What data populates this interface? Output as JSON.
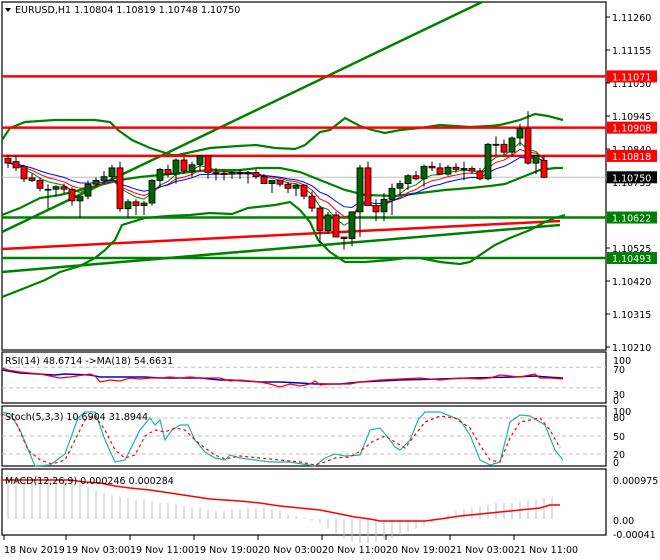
{
  "header": {
    "symbol": "EURUSD,H1",
    "ohlc": "1.10804 1.10819 1.10748 1.10750",
    "title": "EURUSD,H1  1.10804 1.10819 1.10748 1.10750"
  },
  "colors": {
    "bull": "#006400",
    "bear": "#ff0000",
    "resistance": "#ff0000",
    "support": "#008000",
    "band": "#008000",
    "ma_blue": "#0000ff",
    "ma_red": "#ff0000",
    "ma_green": "#008000",
    "rsi": "#ff0000",
    "rsi_ma": "#0000cc",
    "stoch_main": "#20b2aa",
    "stoch_signal": "#ff0000",
    "macd_hist": "#c0c0c0",
    "macd_signal": "#ff0000",
    "current_price_tag": "#000000"
  },
  "price_axis": {
    "labels": [
      "1.11260",
      "1.11155",
      "1.11050",
      "1.10945",
      "1.10840",
      "1.10735",
      "1.10525",
      "1.10420",
      "1.10315",
      "1.10210"
    ],
    "values": [
      1.1126,
      1.11155,
      1.1105,
      1.10945,
      1.1084,
      1.10735,
      1.10525,
      1.1042,
      1.10315,
      1.1021
    ]
  },
  "levels": [
    {
      "value": 1.11071,
      "label": "1.11071",
      "type": "resistance"
    },
    {
      "value": 1.10908,
      "label": "1.10908",
      "type": "resistance"
    },
    {
      "value": 1.10818,
      "label": "1.10818",
      "type": "resistance"
    },
    {
      "value": 1.10622,
      "label": "1.10622",
      "type": "support"
    },
    {
      "value": 1.10493,
      "label": "1.10493",
      "type": "support"
    }
  ],
  "current_price": {
    "value": 1.1075,
    "label": "1.10750"
  },
  "time_axis": {
    "labels": [
      "18 Nov 2019",
      "19 Nov 03:00",
      "19 Nov 11:00",
      "19 Nov 19:00",
      "20 Nov 03:00",
      "20 Nov 11:00",
      "20 Nov 19:00",
      "21 Nov 03:00",
      "21 Nov 11:00"
    ],
    "x": [
      4,
      66,
      130,
      194,
      258,
      322,
      386,
      450,
      514
    ]
  },
  "rsi": {
    "label": "RSI(14) 48.6714  ->MA(18) 54.6631",
    "axis": [
      "100",
      "70",
      "30",
      "0"
    ]
  },
  "stoch": {
    "label": "Stoch(5,3,3) 10.6904 31.8944",
    "axis": [
      "100",
      "80",
      "50",
      "20",
      "0"
    ]
  },
  "macd": {
    "label": "MACD(12,26,9) 0.000246 0.000284",
    "axis": [
      "0.000975",
      "0.00",
      "-0.00041"
    ]
  },
  "chart_data": {
    "type": "candlestick",
    "title": "EURUSD,H1",
    "candles": [
      [
        1.1081,
        1.10822,
        1.1078,
        1.10795
      ],
      [
        1.108,
        1.1082,
        1.1077,
        1.1078
      ],
      [
        1.10785,
        1.1079,
        1.10735,
        1.10745
      ],
      [
        1.10748,
        1.10762,
        1.10735,
        1.1074
      ],
      [
        1.1074,
        1.10748,
        1.10705,
        1.10715
      ],
      [
        1.10712,
        1.10728,
        1.1065,
        1.10712
      ],
      [
        1.10712,
        1.10726,
        1.1069,
        1.1072
      ],
      [
        1.1072,
        1.1073,
        1.107,
        1.10712
      ],
      [
        1.10712,
        1.10718,
        1.1066,
        1.10675
      ],
      [
        1.10675,
        1.1069,
        1.1062,
        1.1069
      ],
      [
        1.1069,
        1.1074,
        1.1068,
        1.10728
      ],
      [
        1.10728,
        1.1075,
        1.1072,
        1.1074
      ],
      [
        1.1074,
        1.1077,
        1.1073,
        1.10752
      ],
      [
        1.10752,
        1.1079,
        1.1074,
        1.1078
      ],
      [
        1.1078,
        1.108,
        1.1064,
        1.1065
      ],
      [
        1.1065,
        1.1068,
        1.1062,
        1.10672
      ],
      [
        1.10672,
        1.1068,
        1.1063,
        1.1066
      ],
      [
        1.1066,
        1.10675,
        1.1063,
        1.10668
      ],
      [
        1.10668,
        1.10745,
        1.1066,
        1.1074
      ],
      [
        1.1074,
        1.1078,
        1.1072,
        1.10775
      ],
      [
        1.10775,
        1.1079,
        1.1075,
        1.1076
      ],
      [
        1.1076,
        1.1081,
        1.1073,
        1.10805
      ],
      [
        1.10805,
        1.10815,
        1.1076,
        1.1077
      ],
      [
        1.1077,
        1.108,
        1.1075,
        1.1079
      ],
      [
        1.1079,
        1.1082,
        1.1077,
        1.10818
      ],
      [
        1.10818,
        1.1082,
        1.10745,
        1.10765
      ],
      [
        1.10765,
        1.1078,
        1.1074,
        1.10762
      ],
      [
        1.10762,
        1.10772,
        1.1074,
        1.1076
      ],
      [
        1.1076,
        1.1077,
        1.10745,
        1.10765
      ],
      [
        1.10765,
        1.10775,
        1.10745,
        1.10762
      ],
      [
        1.10762,
        1.1077,
        1.1073,
        1.10765
      ],
      [
        1.10765,
        1.10775,
        1.10745,
        1.10752
      ],
      [
        1.10752,
        1.1076,
        1.1073,
        1.1073
      ],
      [
        1.1073,
        1.1074,
        1.107,
        1.1074
      ],
      [
        1.1074,
        1.10742,
        1.1072,
        1.10728
      ],
      [
        1.10728,
        1.10735,
        1.107,
        1.10715
      ],
      [
        1.10715,
        1.1073,
        1.1069,
        1.10725
      ],
      [
        1.10725,
        1.10728,
        1.1068,
        1.1069
      ],
      [
        1.1069,
        1.10705,
        1.1064,
        1.10652
      ],
      [
        1.10652,
        1.1066,
        1.1054,
        1.1058
      ],
      [
        1.1058,
        1.1064,
        1.1057,
        1.1063
      ],
      [
        1.1063,
        1.1064,
        1.1056,
        1.1056
      ],
      [
        1.1056,
        1.1056,
        1.1052,
        1.10555
      ],
      [
        1.10555,
        1.1064,
        1.1053,
        1.1064
      ],
      [
        1.1064,
        1.1079,
        1.1056,
        1.1078
      ],
      [
        1.1078,
        1.108,
        1.1066,
        1.1066
      ],
      [
        1.1066,
        1.1068,
        1.1061,
        1.1064
      ],
      [
        1.1064,
        1.107,
        1.1061,
        1.1068
      ],
      [
        1.1068,
        1.1073,
        1.1063,
        1.10715
      ],
      [
        1.10715,
        1.1074,
        1.1069,
        1.1073
      ],
      [
        1.1073,
        1.1076,
        1.1071,
        1.10755
      ],
      [
        1.10755,
        1.1077,
        1.1074,
        1.10745
      ],
      [
        1.10745,
        1.1079,
        1.1072,
        1.10785
      ],
      [
        1.10785,
        1.108,
        1.1077,
        1.1078
      ],
      [
        1.1078,
        1.10795,
        1.1076,
        1.1076
      ],
      [
        1.1076,
        1.1079,
        1.10755,
        1.10782
      ],
      [
        1.10782,
        1.10795,
        1.10765,
        1.10775
      ],
      [
        1.10775,
        1.108,
        1.1074,
        1.10778
      ],
      [
        1.10778,
        1.10785,
        1.1076,
        1.1077
      ],
      [
        1.1077,
        1.1078,
        1.1074,
        1.10745
      ],
      [
        1.10745,
        1.1086,
        1.1074,
        1.10855
      ],
      [
        1.10855,
        1.1088,
        1.1082,
        1.10855
      ],
      [
        1.10855,
        1.1087,
        1.1082,
        1.1083
      ],
      [
        1.1083,
        1.1088,
        1.10815,
        1.10875
      ],
      [
        1.10875,
        1.1092,
        1.1085,
        1.10905
      ],
      [
        1.10905,
        1.1096,
        1.1079,
        1.10795
      ],
      [
        1.10795,
        1.10822,
        1.1076,
        1.1082
      ],
      [
        1.10804,
        1.10819,
        1.10748,
        1.1075
      ]
    ],
    "support_resistance": [
      1.11071,
      1.10908,
      1.10818,
      1.10622,
      1.10493
    ],
    "ylim": [
      1.1021,
      1.1131
    ]
  }
}
